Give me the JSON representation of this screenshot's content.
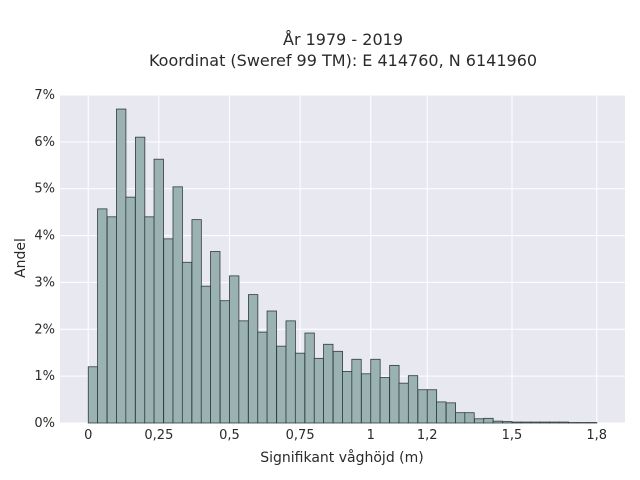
{
  "chart_data": {
    "type": "bar",
    "title_line1": "År 1979 - 2019",
    "title_line2": "Koordinat (Sweref 99 TM): E 414760, N 6141960",
    "xlabel": "Signifikant våghöjd (m)",
    "ylabel": "Andel",
    "xlim": [
      -0.1,
      1.9
    ],
    "ylim": [
      0,
      7
    ],
    "x_ticks": [
      {
        "value": 0,
        "label": "0"
      },
      {
        "value": 0.25,
        "label": "0,25"
      },
      {
        "value": 0.5,
        "label": "0,5"
      },
      {
        "value": 0.75,
        "label": "0,75"
      },
      {
        "value": 1,
        "label": "1"
      },
      {
        "value": 1.2,
        "label": "1,2"
      },
      {
        "value": 1.5,
        "label": "1,5"
      },
      {
        "value": 1.8,
        "label": "1,8"
      }
    ],
    "y_ticks": [
      {
        "value": 0,
        "label": "0%"
      },
      {
        "value": 1,
        "label": "1%"
      },
      {
        "value": 2,
        "label": "2%"
      },
      {
        "value": 3,
        "label": "3%"
      },
      {
        "value": 4,
        "label": "4%"
      },
      {
        "value": 5,
        "label": "5%"
      },
      {
        "value": 6,
        "label": "6%"
      },
      {
        "value": 7,
        "label": "7%"
      }
    ],
    "bin_width": 0.0333,
    "bin_starts": [
      0.0,
      0.033,
      0.067,
      0.1,
      0.133,
      0.167,
      0.2,
      0.233,
      0.267,
      0.3,
      0.333,
      0.367,
      0.4,
      0.433,
      0.467,
      0.5,
      0.533,
      0.567,
      0.6,
      0.633,
      0.667,
      0.7,
      0.733,
      0.767,
      0.8,
      0.833,
      0.867,
      0.9,
      0.933,
      0.967,
      1.0,
      1.033,
      1.067,
      1.1,
      1.133,
      1.167,
      1.2,
      1.233,
      1.267,
      1.3,
      1.333,
      1.367,
      1.4,
      1.433,
      1.467,
      1.5,
      1.533,
      1.567,
      1.6,
      1.633,
      1.667,
      1.7,
      1.733,
      1.767
    ],
    "values": [
      1.2,
      4.57,
      4.4,
      6.7,
      4.82,
      6.1,
      4.4,
      5.63,
      3.93,
      5.04,
      3.43,
      4.34,
      2.92,
      3.66,
      2.61,
      3.14,
      2.18,
      2.74,
      1.94,
      2.39,
      1.64,
      2.18,
      1.49,
      1.92,
      1.38,
      1.68,
      1.53,
      1.1,
      1.36,
      1.05,
      1.36,
      0.97,
      1.23,
      0.85,
      1.01,
      0.71,
      0.71,
      0.45,
      0.43,
      0.22,
      0.22,
      0.09,
      0.1,
      0.04,
      0.03,
      0.02,
      0.02,
      0.02,
      0.02,
      0.02,
      0.02,
      0.01,
      0.01,
      0.01
    ],
    "grid": true,
    "bar_color": "#9bb2b2",
    "edge_color": "#2f3b3b",
    "plot_bg_color": "#e8e8f0"
  }
}
